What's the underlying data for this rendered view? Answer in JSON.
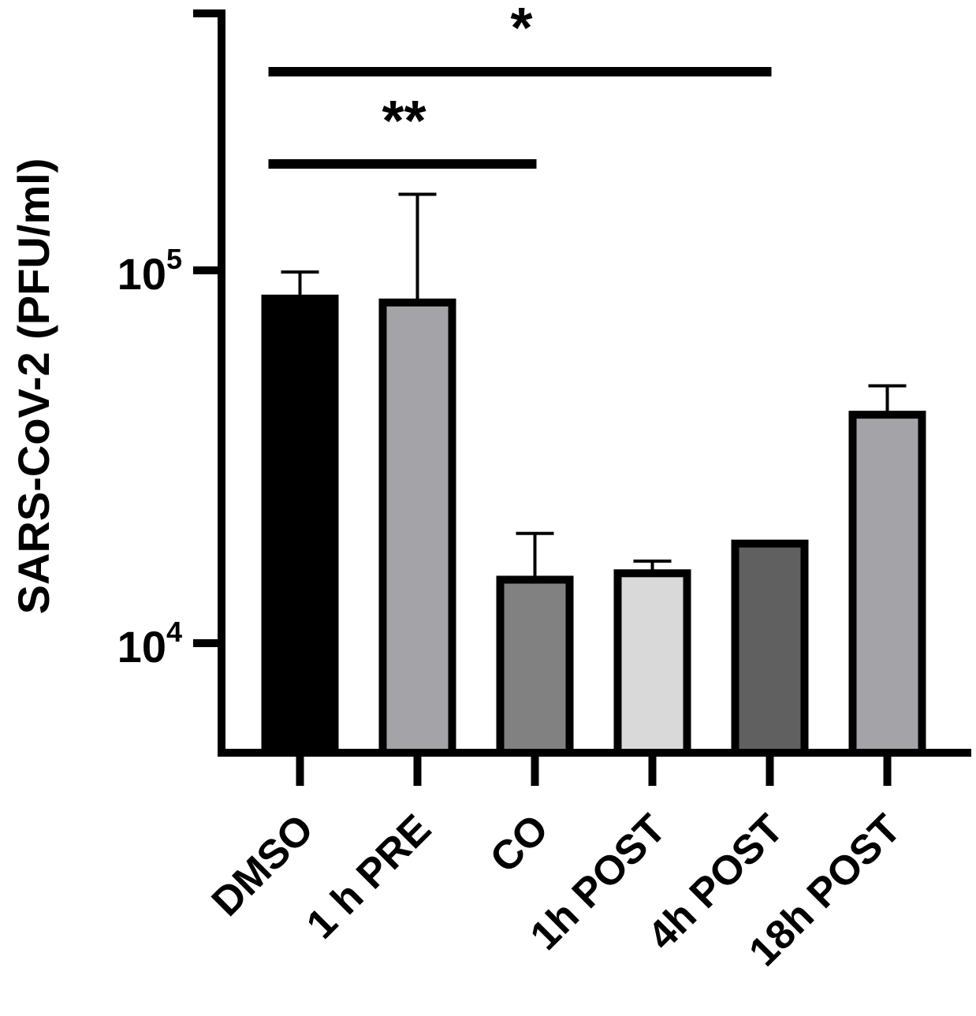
{
  "chart_data": {
    "type": "bar",
    "title": "",
    "xlabel": "",
    "ylabel": "SARS-CoV-2 (PFU/ml)",
    "yscale": "log",
    "ylim": [
      5000,
      600000
    ],
    "yticks": [
      {
        "value": 10000,
        "base": "10",
        "exp": "4"
      },
      {
        "value": 100000,
        "base": "10",
        "exp": "5"
      }
    ],
    "categories": [
      "DMSO",
      "1 h PRE",
      "CO",
      "1h POST",
      "4h POST",
      "18h POST"
    ],
    "values": [
      84000,
      82000,
      14800,
      15400,
      18500,
      41000
    ],
    "error_upper": [
      99000,
      160000,
      19700,
      16600,
      18500,
      49000
    ],
    "bar_colors": [
      "#000000",
      "#a4a3a8",
      "#818181",
      "#d9d9d9",
      "#606060",
      "#a4a3a8"
    ],
    "grid": false,
    "legend": "none",
    "significance": [
      {
        "from": "DMSO",
        "to": "CO",
        "label": "**"
      },
      {
        "from": "DMSO",
        "to": "4h POST",
        "label": "*"
      }
    ]
  }
}
